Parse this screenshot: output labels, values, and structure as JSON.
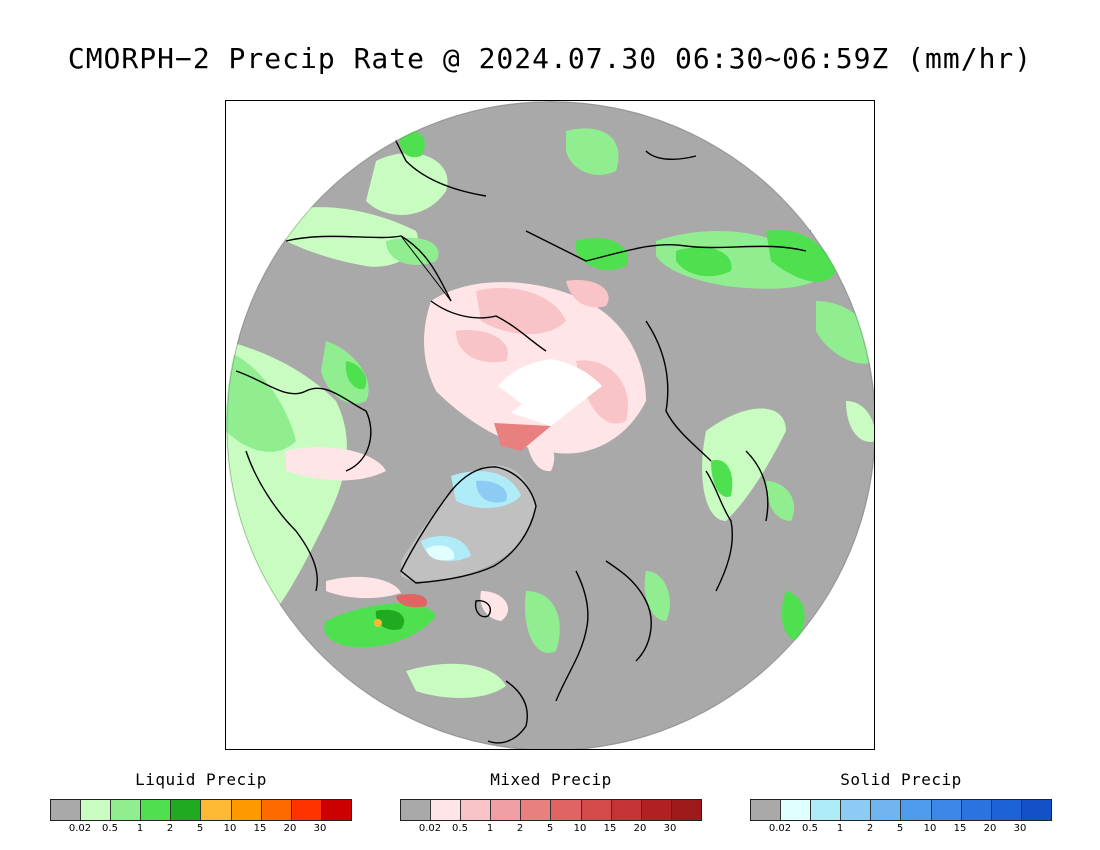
{
  "title": "CMORPH−2 Precip Rate @ 2024.07.30 06:30~06:59Z (mm/hr)",
  "legends": [
    {
      "title": "Liquid Precip",
      "colors": [
        "#a9a9a9",
        "#c8fcc0",
        "#90ee90",
        "#4fe04f",
        "#20aa20",
        "#ffb833",
        "#ff9900",
        "#ff6a00",
        "#ff3300",
        "#cc0000"
      ],
      "ticks": [
        "0.02",
        "0.5",
        "1",
        "2",
        "5",
        "10",
        "15",
        "20",
        "30"
      ]
    },
    {
      "title": "Mixed Precip",
      "colors": [
        "#a9a9a9",
        "#ffe4e8",
        "#f8c4c8",
        "#f0a0a4",
        "#e88080",
        "#e06464",
        "#d44a4a",
        "#c43434",
        "#b02222",
        "#9e1a1a"
      ],
      "ticks": [
        "0.02",
        "0.5",
        "1",
        "2",
        "5",
        "10",
        "15",
        "20",
        "30"
      ]
    },
    {
      "title": "Solid Precip",
      "colors": [
        "#a9a9a9",
        "#e0ffff",
        "#b0ecf8",
        "#8cccf4",
        "#70b4f0",
        "#509cec",
        "#3c88e8",
        "#2a74e0",
        "#1e62d8",
        "#1450c8"
      ],
      "ticks": [
        "0.02",
        "0.5",
        "1",
        "2",
        "5",
        "10",
        "15",
        "20",
        "30"
      ]
    }
  ]
}
